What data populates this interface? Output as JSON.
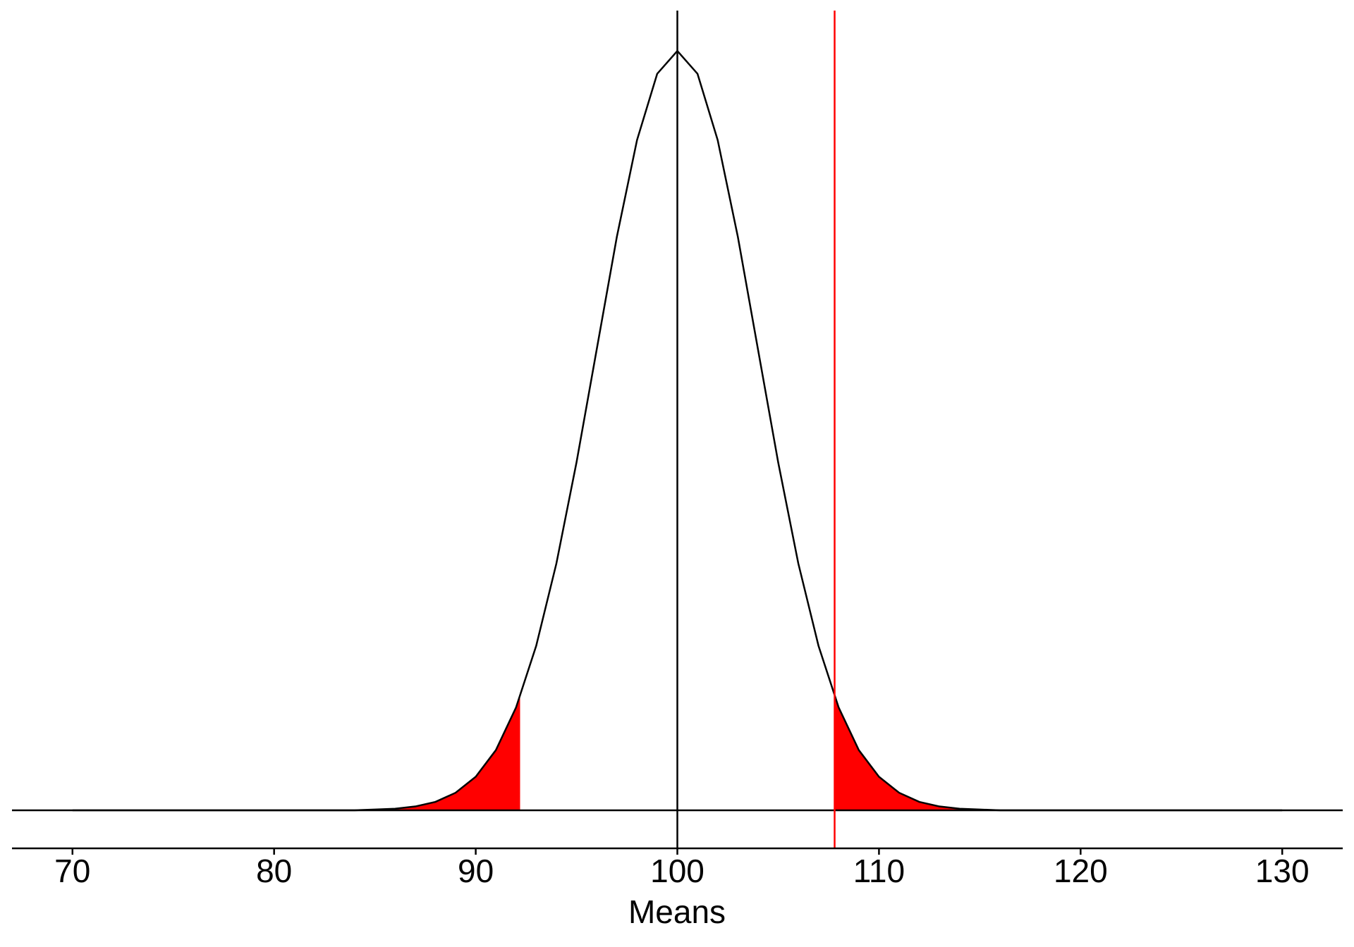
{
  "chart_data": {
    "type": "density",
    "xlabel": "Means",
    "x": [
      70,
      71,
      72,
      73,
      74,
      75,
      76,
      77,
      78,
      79,
      80,
      81,
      82,
      83,
      84,
      85,
      86,
      87,
      88,
      89,
      90,
      91,
      92,
      93,
      94,
      95,
      96,
      97,
      98,
      99,
      100,
      101,
      102,
      103,
      104,
      105,
      106,
      107,
      108,
      109,
      110,
      111,
      112,
      113,
      114,
      115,
      116,
      117,
      118,
      119,
      120,
      121,
      122,
      123,
      124,
      125,
      126,
      127,
      128,
      129,
      130
    ],
    "values": [
      0,
      0,
      0,
      0,
      0,
      0,
      0,
      0,
      0,
      0,
      0,
      0,
      0,
      0,
      0,
      0.0001,
      0.0002,
      0.0005,
      0.0011,
      0.0023,
      0.0044,
      0.0079,
      0.0135,
      0.0216,
      0.0324,
      0.0457,
      0.0605,
      0.0753,
      0.088,
      0.0967,
      0.0997,
      0.0967,
      0.088,
      0.0753,
      0.0605,
      0.0457,
      0.0324,
      0.0216,
      0.0135,
      0.0079,
      0.0044,
      0.0023,
      0.0011,
      0.0005,
      0.0002,
      0.0001,
      0,
      0,
      0,
      0,
      0,
      0,
      0,
      0,
      0,
      0,
      0,
      0,
      0,
      0,
      0
    ],
    "color": "#000000",
    "tails": [
      92.2,
      107.8
    ],
    "tail_color": "#ff0000",
    "vlines": [
      {
        "value": 100,
        "color": "#000000"
      },
      {
        "value": 107.8,
        "color": "#ff0000"
      }
    ],
    "xlim": [
      67,
      133
    ],
    "xticks": [
      70,
      80,
      90,
      100,
      110,
      120,
      130
    ],
    "ylim": [
      -0.005,
      0.105
    ]
  }
}
